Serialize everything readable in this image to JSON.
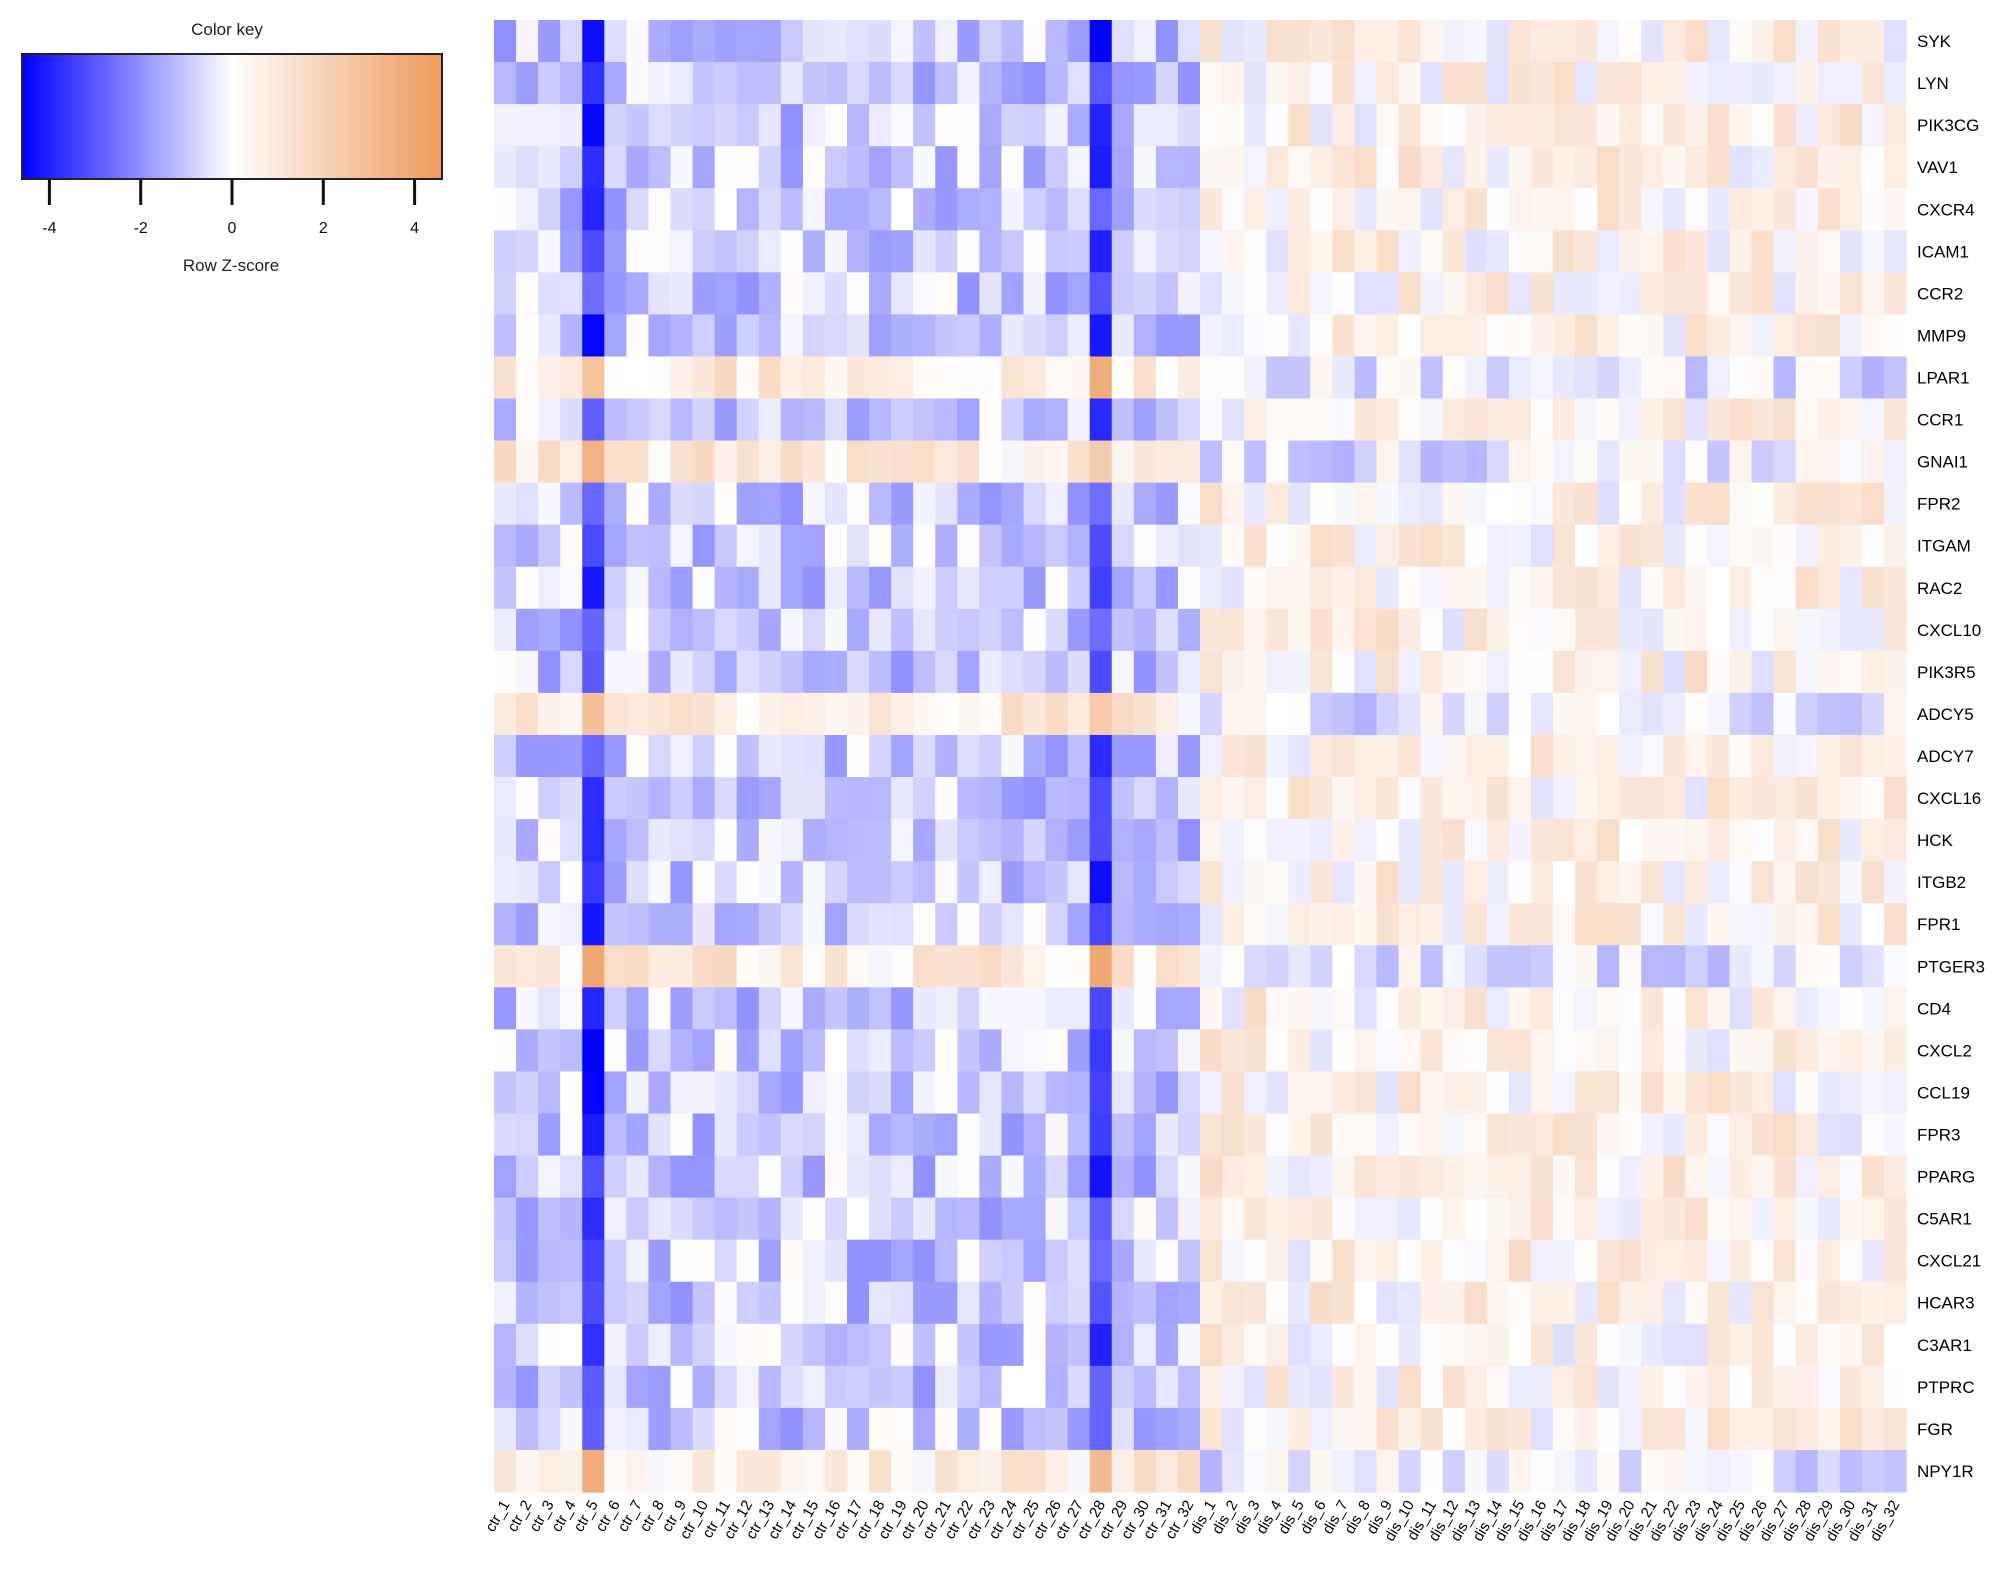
{
  "chart_data": {
    "type": "heatmap",
    "title": "",
    "color_key": {
      "title": "Color key",
      "axis_label": "Row Z-score",
      "range": [
        -4.6,
        4.6
      ],
      "ticks": [
        -4,
        -2,
        0,
        2,
        4
      ],
      "colors": {
        "low": "#0000ff",
        "mid": "#ffffff",
        "high": "#ee9a5d"
      }
    },
    "rows": [
      "SYK",
      "LYN",
      "PIK3CG",
      "VAV1",
      "CXCR4",
      "ICAM1",
      "CCR2",
      "MMP9",
      "LPAR1",
      "CCR1",
      "GNAI1",
      "FPR2",
      "ITGAM",
      "RAC2",
      "CXCL10",
      "PIK3R5",
      "ADCY5",
      "ADCY7",
      "CXCL16",
      "HCK",
      "ITGB2",
      "FPR1",
      "PTGER3",
      "CD4",
      "CXCL2",
      "CCL19",
      "FPR3",
      "PPARG",
      "C5AR1",
      "CXCL21",
      "HCAR3",
      "C3AR1",
      "PTPRC",
      "FGR",
      "NPY1R"
    ],
    "columns": [
      "ctr_1",
      "ctr_2",
      "ctr_3",
      "ctr_4",
      "ctr_5",
      "ctr_6",
      "ctr_7",
      "ctr_8",
      "ctr_9",
      "ctr_10",
      "ctr_11",
      "ctr_12",
      "ctr_13",
      "ctr_14",
      "ctr_15",
      "ctr_16",
      "ctr_17",
      "ctr_18",
      "ctr_19",
      "ctr_20",
      "ctr_21",
      "ctr_22",
      "ctr_23",
      "ctr_24",
      "ctr_25",
      "ctr_26",
      "ctr_27",
      "ctr_28",
      "ctr_29",
      "ctr_30",
      "ctr_31",
      "ctr_32",
      "dis_1",
      "dis_2",
      "dis_3",
      "dis_4",
      "dis_5",
      "dis_6",
      "dis_7",
      "dis_8",
      "dis_9",
      "dis_10",
      "dis_11",
      "dis_12",
      "dis_13",
      "dis_14",
      "dis_15",
      "dis_16",
      "dis_17",
      "dis_18",
      "dis_19",
      "dis_20",
      "dis_21",
      "dis_22",
      "dis_23",
      "dis_24",
      "dis_25",
      "dis_26",
      "dis_27",
      "dis_28",
      "dis_29",
      "dis_30",
      "dis_31",
      "dis_32"
    ],
    "inverse_rows": [
      "LPAR1",
      "GNAI1",
      "ADCY5",
      "PTGER3",
      "NPY1R"
    ],
    "strong_low_columns": [
      "ctr_5",
      "ctr_28"
    ],
    "values_note": "approximate"
  }
}
